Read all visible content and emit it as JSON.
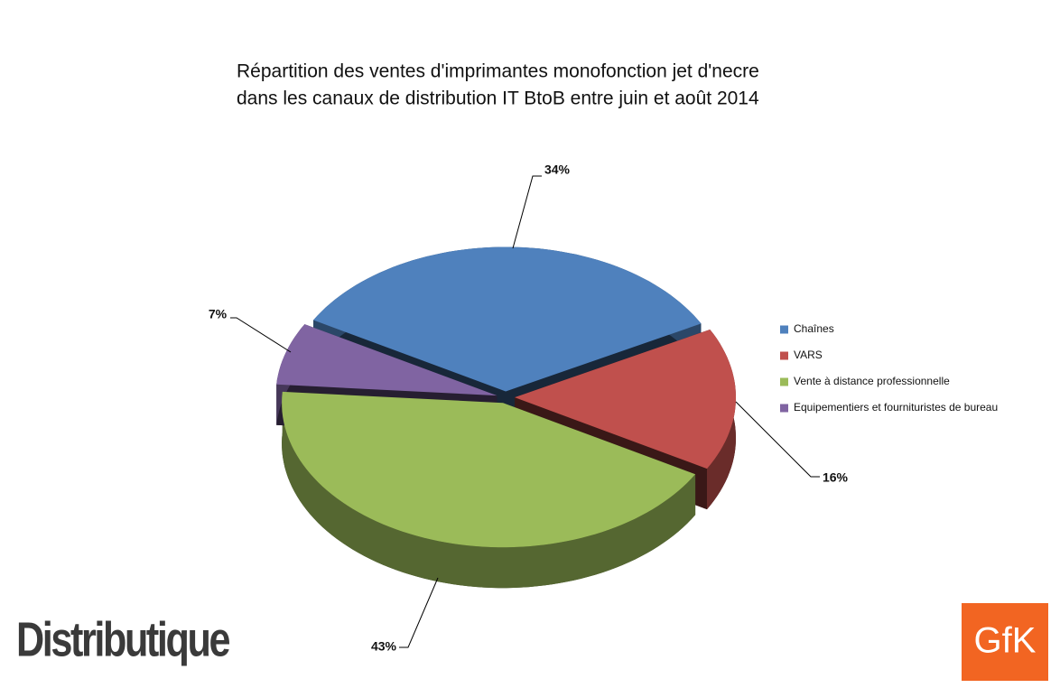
{
  "chart_data": {
    "type": "pie",
    "title": [
      "Répartition des ventes d'imprimantes monofonction jet d'necre",
      "dans les canaux de distribution IT BtoB entre juin et août 2014"
    ],
    "categories": [
      "Chaînes",
      "VARS",
      "Vente à distance professionnelle",
      "Equipementiers et fournituristes de bureau"
    ],
    "values": [
      34,
      16,
      43,
      7
    ],
    "value_labels": [
      "34%",
      "16%",
      "43%",
      "7%"
    ],
    "colors": [
      "#4f81bd",
      "#c0504d",
      "#9bbb59",
      "#8064a2"
    ],
    "legend": "right"
  },
  "branding": {
    "left": "Distributique",
    "right": "GfK"
  }
}
